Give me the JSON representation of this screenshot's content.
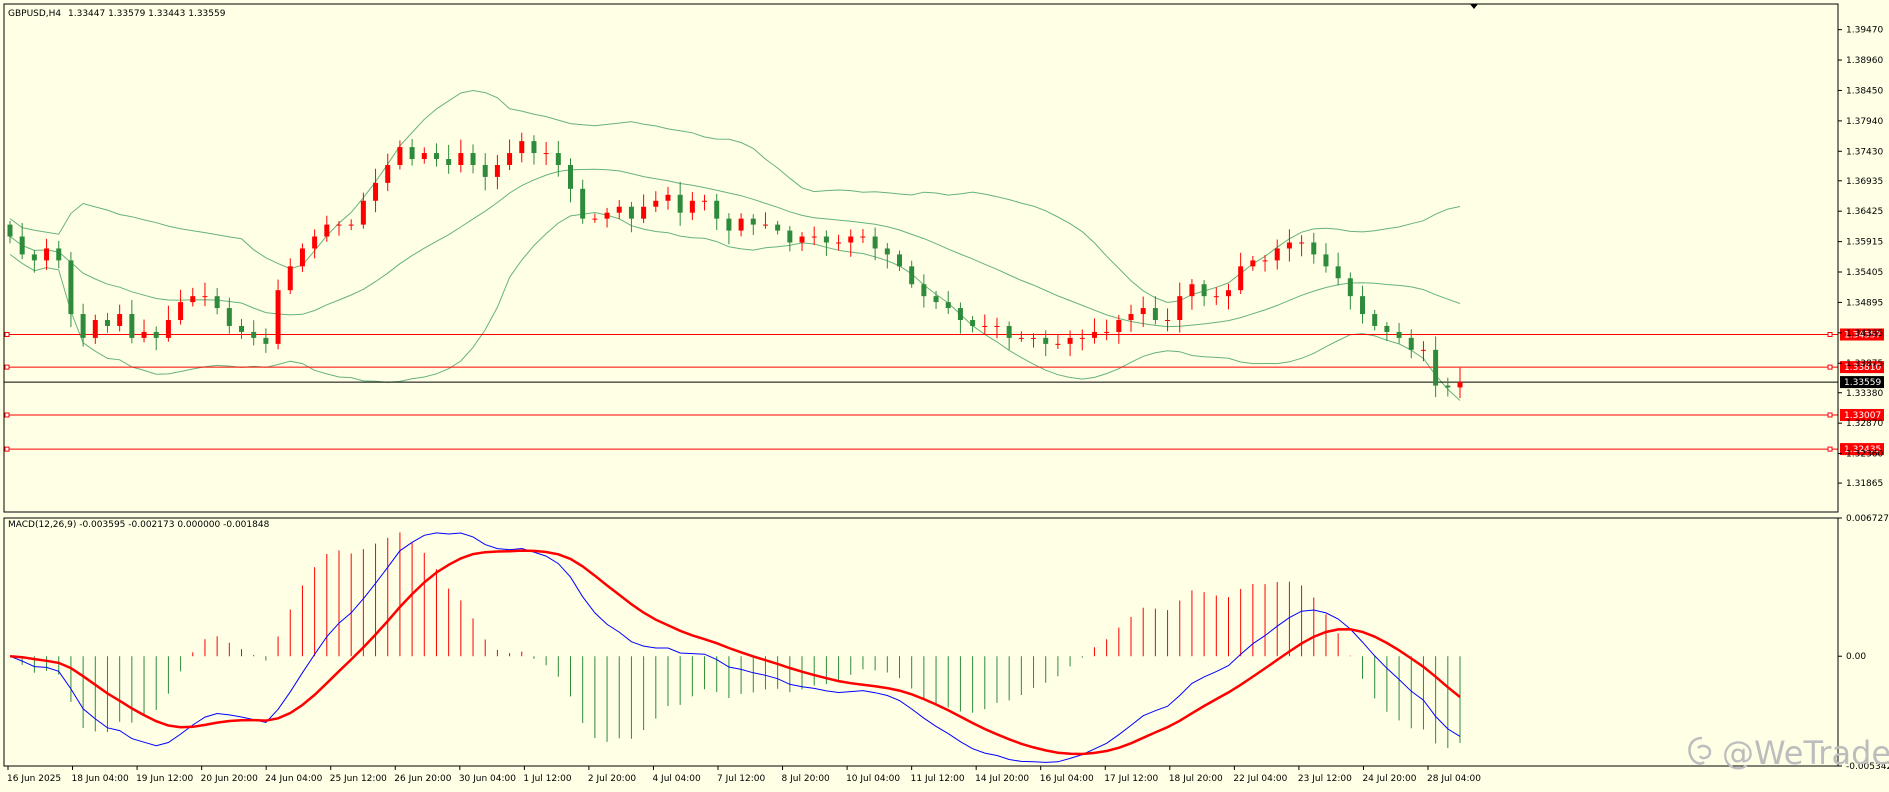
{
  "colors": {
    "background": "#ffffe6",
    "bull_candle": "#ff0000",
    "bear_candle": "#2e8b3c",
    "bands": "#66b37a",
    "macd_line": "#0000ff",
    "signal_line": "#ff0000",
    "hist_pos": "#ff0000",
    "hist_neg": "#2e8b3c",
    "hline": "#ff0000",
    "price_line": "#000000"
  },
  "chart_data": [
    {
      "type": "candlestick",
      "title": "GBPUSD,H4",
      "ohlc_readout": [
        "1.33447",
        "1.33579",
        "1.33443",
        "1.33559"
      ],
      "ylim": [
        1.3138,
        1.399
      ],
      "y_ticks": [
        "1.39470",
        "1.38960",
        "1.38450",
        "1.37940",
        "1.37430",
        "1.36935",
        "1.36425",
        "1.35915",
        "1.35405",
        "1.34895",
        "1.34385",
        "1.33875",
        "1.33380",
        "1.32870",
        "1.32360",
        "1.31865"
      ],
      "x_tick_labels": [
        "16 Jun 2025",
        "18 Jun 04:00",
        "19 Jun 12:00",
        "20 Jun 20:00",
        "24 Jun 04:00",
        "25 Jun 12:00",
        "26 Jun 20:00",
        "30 Jun 04:00",
        "1 Jul 12:00",
        "2 Jul 20:00",
        "4 Jul 04:00",
        "7 Jul 12:00",
        "8 Jul 20:00",
        "10 Jul 04:00",
        "11 Jul 12:00",
        "14 Jul 20:00",
        "16 Jul 04:00",
        "17 Jul 12:00",
        "18 Jul 20:00",
        "22 Jul 04:00",
        "23 Jul 12:00",
        "24 Jul 20:00",
        "28 Jul 04:00"
      ],
      "close_path": [
        1.36,
        1.357,
        1.356,
        1.358,
        1.356,
        1.347,
        1.343,
        1.346,
        1.345,
        1.347,
        1.343,
        1.344,
        1.343,
        1.346,
        1.349,
        1.35,
        1.35,
        1.348,
        1.345,
        1.344,
        1.343,
        1.342,
        1.351,
        1.355,
        1.358,
        1.36,
        1.362,
        1.362,
        1.362,
        1.366,
        1.369,
        1.372,
        1.375,
        1.373,
        1.374,
        1.373,
        1.372,
        1.374,
        1.372,
        1.37,
        1.372,
        1.374,
        1.376,
        1.374,
        1.374,
        1.372,
        1.368,
        1.363,
        1.363,
        1.364,
        1.365,
        1.363,
        1.365,
        1.366,
        1.367,
        1.364,
        1.366,
        1.366,
        1.363,
        1.361,
        1.363,
        1.362,
        1.362,
        1.361,
        1.359,
        1.36,
        1.36,
        1.359,
        1.359,
        1.36,
        1.36,
        1.358,
        1.357,
        1.355,
        1.352,
        1.35,
        1.349,
        1.348,
        1.346,
        1.345,
        1.345,
        1.345,
        1.343,
        1.343,
        1.343,
        1.342,
        1.342,
        1.343,
        1.343,
        1.344,
        1.344,
        1.346,
        1.347,
        1.348,
        1.346,
        1.346,
        1.35,
        1.352,
        1.35,
        1.35,
        1.351,
        1.355,
        1.356,
        1.356,
        1.358,
        1.359,
        1.359,
        1.357,
        1.355,
        1.353,
        1.35,
        1.347,
        1.345,
        1.344,
        1.343,
        1.341,
        1.341,
        1.335,
        1.3347,
        1.3356
      ],
      "horizontal_levels": [
        {
          "label": "1.34357",
          "value": 1.34357
        },
        {
          "label": "1.33810",
          "value": 1.3381
        },
        {
          "label": "1.33559",
          "value": 1.33559,
          "current": true
        },
        {
          "label": "1.33007",
          "value": 1.33007
        },
        {
          "label": "1.32435",
          "value": 1.32435
        }
      ],
      "overlays": [
        "Bollinger Bands (upper, middle, lower)"
      ]
    },
    {
      "type": "macd",
      "label": "MACD(12,26,9) -0.003595 -0.002173 0.000000 -0.001848",
      "ylim": [
        -0.005342,
        0.006727
      ],
      "y_ticks": [
        "0.006727",
        "0.00",
        "-0.005342"
      ],
      "series": [
        {
          "name": "MACD",
          "color": "#0000ff"
        },
        {
          "name": "Signal",
          "color": "#ff0000"
        },
        {
          "name": "Histogram"
        }
      ]
    }
  ],
  "watermark": {
    "text": "@WeTrade",
    "icon": "wetrade-logo-icon"
  }
}
